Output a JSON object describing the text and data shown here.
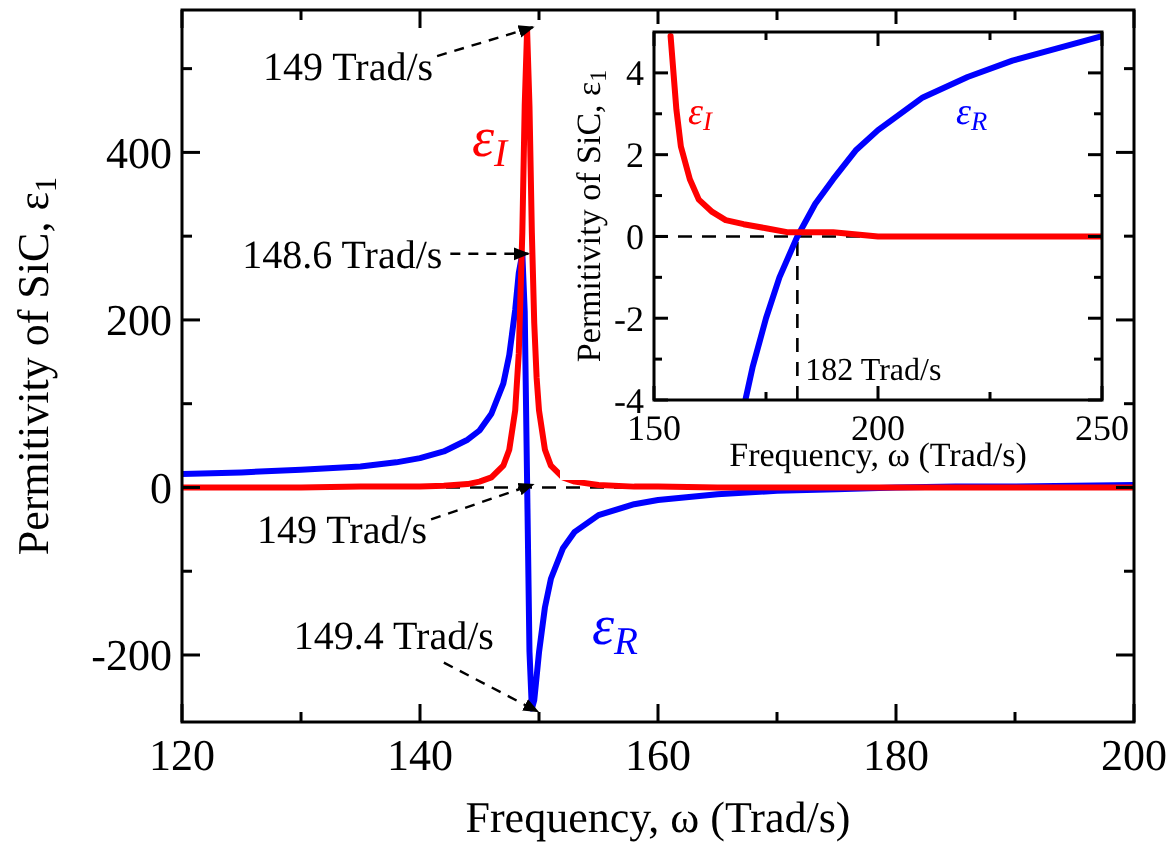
{
  "chart_data": [
    {
      "type": "line",
      "xlabel": "Frequency, ω (Trad/s)",
      "ylabel": "Permitivity of SiC, ε$_{1}$",
      "xlim": [
        120,
        200
      ],
      "ylim": [
        -280,
        570
      ],
      "xticks": [
        120,
        {
          "value": 130,
          "label": null
        },
        140,
        {
          "value": 150,
          "label": null
        },
        160,
        {
          "value": 170,
          "label": null
        },
        180,
        {
          "value": 190,
          "label": null
        },
        200
      ],
      "yticks": [
        -200,
        {
          "value": -100,
          "label": null
        },
        0,
        {
          "value": 100,
          "label": null
        },
        200,
        {
          "value": 300,
          "label": null
        },
        400,
        {
          "value": 500,
          "label": null
        }
      ],
      "x": [
        120,
        125,
        130,
        135,
        138,
        140,
        142,
        144,
        145,
        146,
        147,
        147.5,
        148,
        148.3,
        148.6,
        148.8,
        149,
        149.2,
        149.4,
        149.6,
        149.8,
        150,
        150.5,
        151,
        152,
        153,
        155,
        158,
        160,
        165,
        170,
        175,
        180,
        185,
        190,
        195,
        200
      ],
      "series": [
        {
          "name": "ε$_{R}$",
          "color": "#0000ff",
          "values": [
            16,
            18,
            21,
            25,
            30,
            35,
            43,
            57,
            68,
            88,
            124,
            158,
            212,
            256,
            279,
            210,
            7,
            -196,
            -264,
            -254,
            -226,
            -197,
            -143,
            -109,
            -73,
            -53,
            -33,
            -20,
            -15,
            -8,
            -4,
            -2,
            0,
            1,
            1,
            2,
            3
          ]
        },
        {
          "name": "ε$_{I}$",
          "color": "#ff0000",
          "values": [
            0,
            0,
            0,
            1,
            1,
            1,
            2,
            4,
            7,
            12,
            26,
            45,
            92,
            160,
            305,
            456,
            546,
            455,
            304,
            196,
            131,
            92,
            45,
            26,
            12,
            7,
            3,
            1,
            1,
            0,
            0,
            0,
            0,
            0,
            0,
            0,
            0
          ]
        }
      ],
      "ref_lines": [
        {
          "axis": "y",
          "value": 0,
          "color": "#000000",
          "line_style": "dashed"
        }
      ],
      "annotations": [
        {
          "text": "149 Trad/s",
          "x": 149,
          "y": 546
        },
        {
          "text": "148.6 Trad/s",
          "x": 148.6,
          "y": 279
        },
        {
          "text": "149 Trad/s",
          "x": 149,
          "y": 0
        },
        {
          "text": "149.4 Trad/s",
          "x": 149.4,
          "y": -264
        }
      ]
    },
    {
      "type": "line",
      "xlabel": "Frequency, ω (Trad/s)",
      "ylabel": "Permitivity of SiC, ε$_{1}$",
      "xlim": [
        150,
        250
      ],
      "ylim": [
        -4,
        5
      ],
      "xticks": [
        150,
        {
          "value": 175,
          "label": null
        },
        200,
        {
          "value": 225,
          "label": null
        },
        250
      ],
      "yticks": [
        -4,
        {
          "value": -3,
          "label": null
        },
        -2,
        {
          "value": -1,
          "label": null
        },
        0,
        {
          "value": 1,
          "label": null
        },
        2,
        {
          "value": 3,
          "label": null
        },
        4
      ],
      "series": [
        {
          "name": "ε$_{R}$",
          "color": "#0000ff",
          "x": [
            170.4,
            172,
            175,
            178,
            182,
            186,
            190,
            195,
            200,
            210,
            220,
            230,
            240,
            250
          ],
          "values": [
            -4.0,
            -3.2,
            -2.0,
            -1.0,
            0.0,
            0.8,
            1.4,
            2.1,
            2.6,
            3.4,
            3.9,
            4.3,
            4.6,
            4.9
          ]
        },
        {
          "name": "ε$_{I}$",
          "color": "#ff0000",
          "x": [
            153.7,
            155,
            156,
            158,
            160,
            163,
            166,
            170,
            175,
            180,
            190,
            200,
            220,
            250
          ],
          "values": [
            4.9,
            3.1,
            2.2,
            1.4,
            0.9,
            0.6,
            0.4,
            0.3,
            0.2,
            0.1,
            0.1,
            0,
            0,
            0
          ]
        }
      ],
      "ref_lines": [
        {
          "axis": "y",
          "value": 0,
          "color": "#000000",
          "line_style": "dashed"
        },
        {
          "axis": "x",
          "value": 182,
          "label": "182 Trad/s",
          "color": "#000000",
          "line_style": "dashed"
        }
      ]
    }
  ]
}
